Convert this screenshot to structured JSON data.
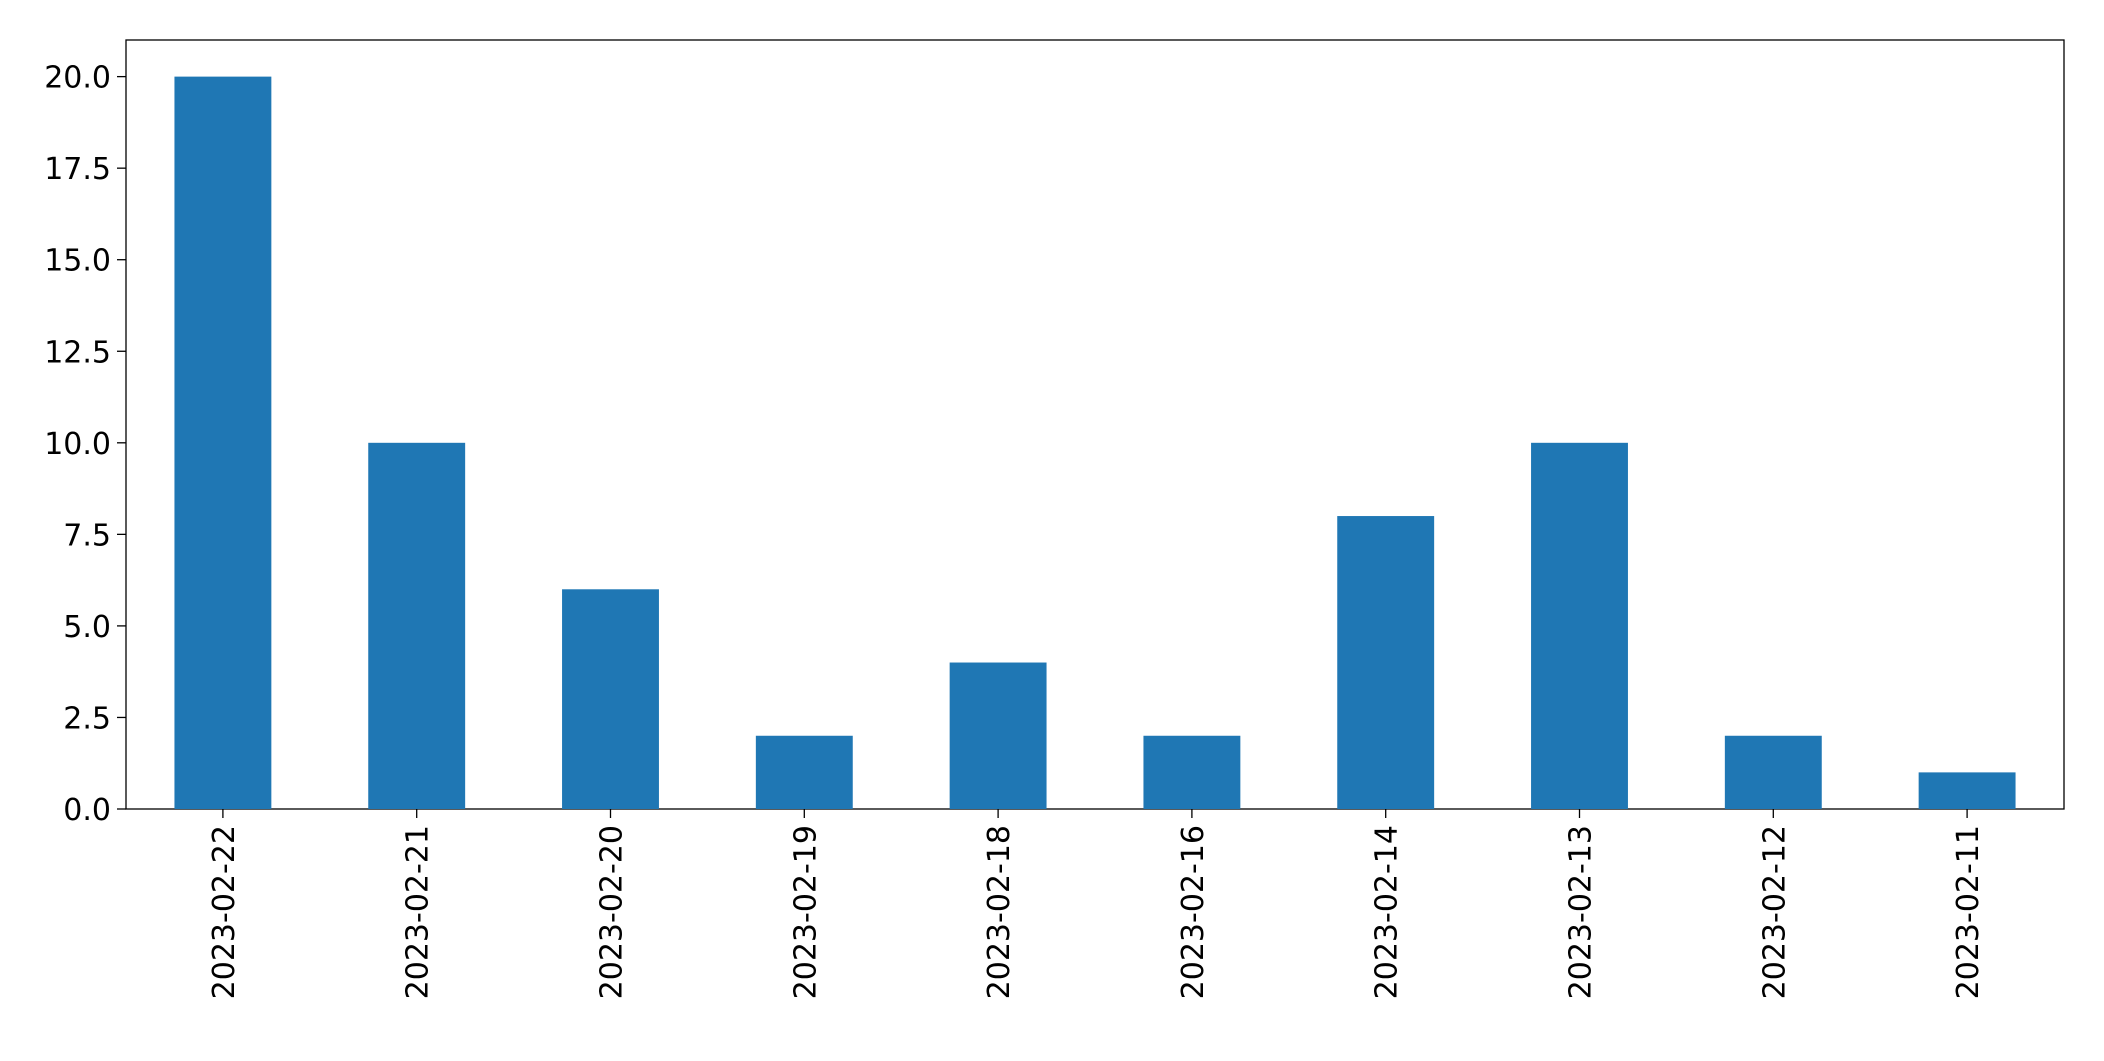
{
  "chart_data": {
    "type": "bar",
    "categories": [
      "2023-02-22",
      "2023-02-21",
      "2023-02-20",
      "2023-02-19",
      "2023-02-18",
      "2023-02-16",
      "2023-02-14",
      "2023-02-13",
      "2023-02-12",
      "2023-02-11"
    ],
    "values": [
      20,
      10,
      6,
      2,
      4,
      2,
      8,
      10,
      2,
      1
    ],
    "color": "#1f77b4",
    "ylim": [
      0,
      21
    ],
    "yticks": [
      {
        "value": 0,
        "label": "0.0"
      },
      {
        "value": 2.5,
        "label": "2.5"
      },
      {
        "value": 5,
        "label": "5.0"
      },
      {
        "value": 7.5,
        "label": "7.5"
      },
      {
        "value": 10,
        "label": "10.0"
      },
      {
        "value": 12.5,
        "label": "12.5"
      },
      {
        "value": 15,
        "label": "15.0"
      },
      {
        "value": 17.5,
        "label": "17.5"
      },
      {
        "value": 20,
        "label": "20.0"
      }
    ],
    "grid": false
  }
}
